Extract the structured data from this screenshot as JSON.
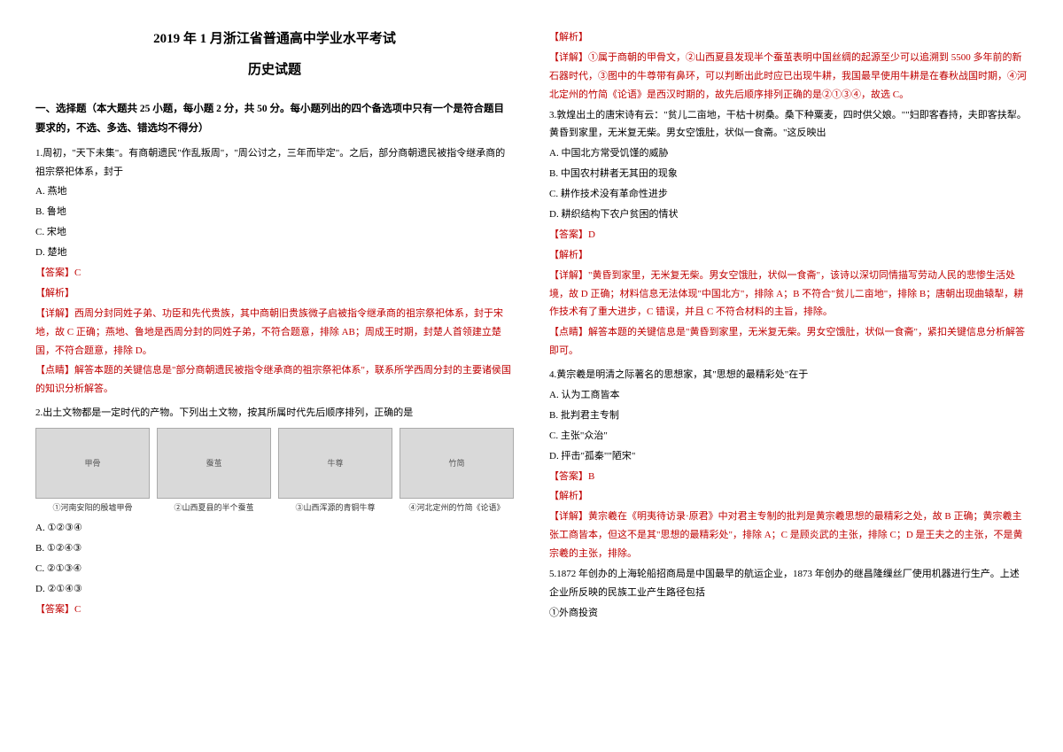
{
  "header": {
    "title_main": "2019 年 1 月浙江省普通高中学业水平考试",
    "title_sub": "历史试题"
  },
  "section_head": "一、选择题（本大题共 25 小题，每小题 2 分，共 50 分。每小题列出的四个备选项中只有一个是符合题目要求的，不选、多选、错选均不得分）",
  "labels": {
    "answer": "【答案】",
    "analysis": "【解析】",
    "detail": "【详解】",
    "hint": "【点睛】"
  },
  "q1": {
    "stem": "1.周初，\"天下未集\"。有商朝遗民\"作乱叛周\"，\"周公讨之，三年而毕定\"。之后，部分商朝遗民被指令继承商的祖宗祭祀体系，封于",
    "opts": {
      "A": "A. 燕地",
      "B": "B. 鲁地",
      "C": "C. 宋地",
      "D": "D. 楚地"
    },
    "answer": "C",
    "detail": "西周分封同姓子弟、功臣和先代贵族，其中商朝旧贵族微子启被指令继承商的祖宗祭祀体系，封于宋地，故 C 正确；燕地、鲁地是西周分封的同姓子弟，不符合题意，排除 AB；周成王时期，封楚人首领建立楚国，不符合题意，排除 D。",
    "hint": "解答本题的关键信息是\"部分商朝遗民被指令继承商的祖宗祭祀体系\"，联系所学西周分封的主要诸侯国的知识分析解答。"
  },
  "q2": {
    "stem": "2.出土文物都是一定时代的产物。下列出土文物，按其所属时代先后顺序排列，正确的是",
    "captions": {
      "c1": "①河南安阳的殷墟甲骨",
      "c2": "②山西夏县的半个蚕茧",
      "c3": "③山西浑源的青铜牛尊",
      "c4": "④河北定州的竹简《论语》"
    },
    "opts": {
      "A": "A. ①②③④",
      "B": "B. ①②④③",
      "C": "C. ②①③④",
      "D": "D. ②①④③"
    },
    "answer": "C",
    "detail_part1": "①属于商朝的甲骨文，②山西夏县发现半个蚕茧表明中国丝绸的起源至少可以追溯到 5500 多年前的新石器时代，③图中的牛尊带有鼻环，可以判断出此时应已出现牛耕，我国最早使用牛耕是在春秋战国时期，④河北定州的竹简《论语》是西汉时期的，故先后顺序排列正确的是②①③④，故选 C。"
  },
  "q3": {
    "stem": "3.敦煌出土的唐宋诗有云：\"贫儿二亩地，干枯十树桑。桑下种粟麦，四时供父娘。\"\"妇即客舂持，夫即客扶犁。黄昏到家里，无米复无柴。男女空饿肚，状似一食斋。\"这反映出",
    "opts": {
      "A": "A. 中国北方常受饥馑的威胁",
      "B": "B. 中国农村耕者无其田的现象",
      "C": "C. 耕作技术没有革命性进步",
      "D": "D. 耕织结构下农户贫困的情状"
    },
    "answer": "D",
    "detail": "\"黄昏到家里，无米复无柴。男女空饿肚，状似一食斋\"，该诗以深切同情描写劳动人民的悲惨生活处境，故 D 正确；材料信息无法体现\"中国北方\"，排除 A；B 不符合\"贫儿二亩地\"，排除 B；唐朝出现曲辕犁，耕作技术有了重大进步，C 错误，并且 C 不符合材料的主旨，排除。",
    "hint": "解答本题的关键信息是\"黄昏到家里，无米复无柴。男女空饿肚，状似一食斋\"，紧扣关键信息分析解答即可。"
  },
  "q4": {
    "stem": "4.黄宗羲是明清之际著名的思想家，其\"思想的最精彩处\"在于",
    "opts": {
      "A": "A. 认为工商皆本",
      "B": "B. 批判君主专制",
      "C": "C. 主张\"众治\"",
      "D": "D. 抨击\"孤秦\"\"陋宋\""
    },
    "answer": "B",
    "detail": "黄宗羲在《明夷待访录·原君》中对君主专制的批判是黄宗羲思想的最精彩之处，故 B 正确；黄宗羲主张工商皆本，但这不是其\"思想的最精彩处\"，排除 A；C 是顾炎武的主张，排除 C；D 是王夫之的主张，不是黄宗羲的主张，排除。"
  },
  "q5": {
    "stem": "5.1872 年创办的上海轮船招商局是中国最早的航运企业，1873 年创办的继昌隆缫丝厂使用机器进行生产。上述企业所反映的民族工业产生路径包括",
    "sub": "①外商投资"
  }
}
